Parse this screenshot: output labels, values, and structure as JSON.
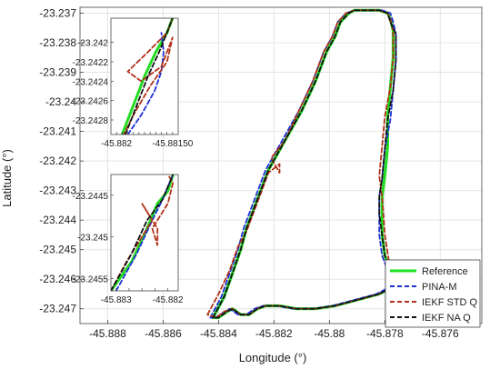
{
  "chart_data": {
    "type": "line",
    "title": "",
    "xlabel": "Longitude (°)",
    "ylabel": "Latitude (°)",
    "xlim": [
      -45.889,
      -45.8745
    ],
    "ylim": [
      -23.2475,
      -23.2368
    ],
    "grid": true,
    "xticks": [
      -45.888,
      -45.886,
      -45.884,
      -45.882,
      -45.88,
      -45.878,
      -45.876
    ],
    "yticks": [
      -23.237,
      -23.238,
      -23.239,
      -23.24,
      -23.241,
      -23.242,
      -23.243,
      -23.244,
      -23.245,
      -23.246,
      -23.247
    ],
    "legend_position": "bottom-right",
    "series": [
      {
        "name": "Reference",
        "color": "#22dd22",
        "style": "solid",
        "x": [
          -45.8842,
          -45.8838,
          -45.8835,
          -45.8832,
          -45.883,
          -45.8826,
          -45.8822,
          -45.8816,
          -45.881,
          -45.8805,
          -45.8801,
          -45.8798,
          -45.8796,
          -45.8793,
          -45.8791,
          -45.8788,
          -45.8786,
          -45.8782,
          -45.8779,
          -45.8778,
          -45.8777,
          -45.8777,
          -45.8778,
          -45.8779,
          -45.8779,
          -45.878,
          -45.8781,
          -45.8781,
          -45.8781,
          -45.878,
          -45.8778,
          -45.8777,
          -45.8778,
          -45.8782,
          -45.879,
          -45.8798,
          -45.8805,
          -45.8812,
          -45.8818,
          -45.8823,
          -45.8826,
          -45.8829,
          -45.8832,
          -45.8835,
          -45.8837,
          -45.884,
          -45.8842
        ],
        "y": [
          -23.2473,
          -23.2466,
          -23.2458,
          -23.245,
          -23.2443,
          -23.2433,
          -23.2423,
          -23.2413,
          -23.2403,
          -23.2393,
          -23.2383,
          -23.2378,
          -23.2373,
          -23.237,
          -23.2369,
          -23.2369,
          -23.2369,
          -23.2369,
          -23.237,
          -23.2372,
          -23.2376,
          -23.2385,
          -23.2395,
          -23.2405,
          -23.2415,
          -23.2425,
          -23.2432,
          -23.2438,
          -23.2445,
          -23.2452,
          -23.2457,
          -23.2461,
          -23.2463,
          -23.2465,
          -23.2467,
          -23.2469,
          -23.247,
          -23.247,
          -23.2469,
          -23.2469,
          -23.247,
          -23.2472,
          -23.2472,
          -23.247,
          -23.2471,
          -23.2473,
          -23.2473
        ]
      },
      {
        "name": "PINA-M",
        "color": "#1f2fd6",
        "style": "dashed",
        "x": [
          -45.8843,
          -45.8839,
          -45.8836,
          -45.8833,
          -45.8831,
          -45.8827,
          -45.8823,
          -45.8817,
          -45.8811,
          -45.8806,
          -45.8802,
          -45.8799,
          -45.8797,
          -45.8794,
          -45.8791,
          -45.8788,
          -45.8785,
          -45.8781,
          -45.8778,
          -45.8777,
          -45.8776,
          -45.8776,
          -45.8777,
          -45.8778,
          -45.878,
          -45.8781,
          -45.8782,
          -45.8782,
          -45.8782,
          -45.8781,
          -45.8779,
          -45.8778,
          -45.8779,
          -45.8783,
          -45.8791,
          -45.8799,
          -45.8806,
          -45.8813,
          -45.8819,
          -45.8824,
          -45.8827,
          -45.883,
          -45.8833,
          -45.8836,
          -45.8838,
          -45.8841,
          -45.8843
        ],
        "y": [
          -23.2473,
          -23.2466,
          -23.2458,
          -23.245,
          -23.2443,
          -23.2433,
          -23.2423,
          -23.2413,
          -23.2403,
          -23.2393,
          -23.2383,
          -23.2378,
          -23.2373,
          -23.237,
          -23.2369,
          -23.2369,
          -23.2369,
          -23.2369,
          -23.237,
          -23.2373,
          -23.2377,
          -23.2386,
          -23.2396,
          -23.2406,
          -23.2416,
          -23.2426,
          -23.2432,
          -23.2438,
          -23.2445,
          -23.2452,
          -23.2457,
          -23.2461,
          -23.2463,
          -23.2465,
          -23.2467,
          -23.2469,
          -23.247,
          -23.247,
          -23.2469,
          -23.2469,
          -23.247,
          -23.2472,
          -23.2472,
          -23.247,
          -23.2471,
          -23.2473,
          -23.2473
        ]
      },
      {
        "name": "IEKF STD Q",
        "color": "#b03218",
        "style": "dashed",
        "x": [
          -45.8844,
          -45.884,
          -45.8836,
          -45.8833,
          -45.883,
          -45.8826,
          -45.8822,
          -45.8818,
          -45.8818,
          -45.8821,
          -45.8816,
          -45.8811,
          -45.8806,
          -45.8802,
          -45.8799,
          -45.8797,
          -45.8794,
          -45.8791,
          -45.8788,
          -45.8786,
          -45.8782,
          -45.8779,
          -45.8778,
          -45.8777,
          -45.8777,
          -45.8778,
          -45.878,
          -45.8781,
          -45.8782,
          -45.8781,
          -45.878,
          -45.8778,
          -45.8777,
          -45.8778,
          -45.8782,
          -45.879,
          -45.8798,
          -45.8805,
          -45.8812,
          -45.8818,
          -45.8823,
          -45.8826,
          -45.8829,
          -45.8832,
          -45.8835,
          -45.8838,
          -45.8841,
          -45.8844
        ],
        "y": [
          -23.2472,
          -23.2465,
          -23.2457,
          -23.2449,
          -23.2444,
          -23.2434,
          -23.2424,
          -23.2421,
          -23.2424,
          -23.2419,
          -23.2413,
          -23.2403,
          -23.2393,
          -23.2383,
          -23.2378,
          -23.2373,
          -23.237,
          -23.2369,
          -23.2369,
          -23.2369,
          -23.2369,
          -23.237,
          -23.2372,
          -23.2376,
          -23.2385,
          -23.2395,
          -23.2405,
          -23.2415,
          -23.2425,
          -23.2432,
          -23.2445,
          -23.2457,
          -23.2461,
          -23.2463,
          -23.2465,
          -23.2467,
          -23.2469,
          -23.247,
          -23.247,
          -23.2469,
          -23.2469,
          -23.247,
          -23.2472,
          -23.2472,
          -23.247,
          -23.2471,
          -23.2473,
          -23.2472
        ]
      },
      {
        "name": "IEKF NA Q",
        "color": "#111111",
        "style": "dashed",
        "x": [
          -45.8842,
          -45.8838,
          -45.8835,
          -45.8832,
          -45.883,
          -45.8826,
          -45.8822,
          -45.8816,
          -45.881,
          -45.8805,
          -45.8801,
          -45.8798,
          -45.8796,
          -45.8793,
          -45.8791,
          -45.8788,
          -45.8786,
          -45.8782,
          -45.8779,
          -45.8778,
          -45.8776,
          -45.8776,
          -45.8777,
          -45.8779,
          -45.878,
          -45.8781,
          -45.8782,
          -45.8782,
          -45.8781,
          -45.878,
          -45.8778,
          -45.8777,
          -45.8778,
          -45.8782,
          -45.879,
          -45.8798,
          -45.8805,
          -45.8812,
          -45.8818,
          -45.8823,
          -45.8826,
          -45.8829,
          -45.8832,
          -45.8835,
          -45.8837,
          -45.884,
          -45.8842
        ],
        "y": [
          -23.2473,
          -23.2466,
          -23.2458,
          -23.245,
          -23.2443,
          -23.2433,
          -23.2423,
          -23.2413,
          -23.2403,
          -23.2393,
          -23.2383,
          -23.2378,
          -23.2373,
          -23.237,
          -23.2369,
          -23.2369,
          -23.2369,
          -23.2369,
          -23.237,
          -23.2373,
          -23.2377,
          -23.2386,
          -23.2396,
          -23.2406,
          -23.2416,
          -23.2426,
          -23.2432,
          -23.2438,
          -23.2445,
          -23.2452,
          -23.2457,
          -23.2461,
          -23.2463,
          -23.2465,
          -23.2467,
          -23.2469,
          -23.247,
          -23.247,
          -23.2469,
          -23.2469,
          -23.247,
          -23.2472,
          -23.2472,
          -23.247,
          -23.2471,
          -23.2473,
          -23.2473
        ]
      }
    ],
    "insets": [
      {
        "xlim": [
          -45.88205,
          -45.88145
        ],
        "ylim": [
          -23.24295,
          -23.24175
        ],
        "xticks": [
          -45.882,
          -45.88195,
          -45.8819,
          -45.88185,
          -45.8818,
          -45.88175,
          -45.8817,
          -45.88165,
          -45.8816,
          -45.88155,
          -45.8815
        ],
        "xticklabels": [
          "-45.882",
          "",
          "",
          "",
          "",
          "",
          "",
          "",
          "",
          "",
          "-45.88150"
        ],
        "yticks": [
          -23.242,
          -23.2422,
          -23.2424,
          -23.2426,
          -23.2428
        ],
        "yticklabels": [
          "-23.242",
          "-23.2422",
          "-23.2424",
          "-23.2426",
          "-23.2428"
        ],
        "series": [
          {
            "name": "Reference",
            "x": [
              -45.88195,
              -45.88185,
              -45.88175,
              -45.88165,
              -45.88155,
              -45.8815
            ],
            "y": [
              -23.24295,
              -23.24265,
              -23.24235,
              -23.2421,
              -23.2419,
              -23.24175
            ]
          },
          {
            "name": "PINA-M",
            "x": [
              -45.8819,
              -45.88178,
              -45.88166,
              -45.8816,
              -45.88158,
              -45.8816
            ],
            "y": [
              -23.24295,
              -23.24275,
              -23.2425,
              -23.2423,
              -23.2421,
              -23.2419
            ]
          },
          {
            "name": "IEKF STD Q",
            "x": [
              -45.882,
              -45.88185,
              -45.8817,
              -45.88155,
              -45.8815,
              -45.8816,
              -45.88178,
              -45.8819,
              -45.88172,
              -45.88155,
              -45.8815
            ],
            "y": [
              -23.2431,
              -23.24275,
              -23.24245,
              -23.2422,
              -23.24195,
              -23.24225,
              -23.2424,
              -23.2423,
              -23.2421,
              -23.2419,
              -23.24175
            ]
          },
          {
            "name": "IEKF NA Q",
            "x": [
              -45.88192,
              -45.88182,
              -45.88172,
              -45.88162,
              -45.88155,
              -45.8815
            ],
            "y": [
              -23.24295,
              -23.24265,
              -23.24235,
              -23.2421,
              -23.2419,
              -23.24175
            ]
          }
        ]
      },
      {
        "xlim": [
          -45.8831,
          -45.8818
        ],
        "ylim": [
          -23.24565,
          -23.24425
        ],
        "xticks": [
          -45.883,
          -45.88275,
          -45.8825,
          -45.88225,
          -45.882
        ],
        "xticklabels": [
          "-45.883",
          "",
          "",
          "",
          "-45.882"
        ],
        "yticks": [
          -23.2445,
          -23.245,
          -23.2455
        ],
        "yticklabels": [
          "-23.2445",
          "-23.245",
          "-23.2455"
        ],
        "series": [
          {
            "name": "Reference",
            "x": [
              -45.8831,
              -45.8827,
              -45.8824,
              -45.8822,
              -45.882,
              -45.8819
            ],
            "y": [
              -23.24565,
              -23.2453,
              -23.2449,
              -23.2446,
              -23.24445,
              -23.24425
            ]
          },
          {
            "name": "PINA-M",
            "x": [
              -45.883,
              -45.8826,
              -45.8823,
              -45.8821,
              -45.8819
            ],
            "y": [
              -23.24565,
              -23.2452,
              -23.2448,
              -23.24455,
              -23.24425
            ]
          },
          {
            "name": "IEKF STD Q",
            "x": [
              -45.8831,
              -45.8828,
              -45.8826,
              -45.8824,
              -45.8823,
              -45.8825,
              -45.8822,
              -45.8822,
              -45.8823,
              -45.882,
              -45.8819,
              -45.882
            ],
            "y": [
              -23.24565,
              -23.2453,
              -23.2451,
              -23.2449,
              -23.2448,
              -23.2446,
              -23.2449,
              -23.2451,
              -23.2449,
              -23.2446,
              -23.24435,
              -23.24425
            ]
          },
          {
            "name": "IEKF NA Q",
            "x": [
              -45.8831,
              -45.8827,
              -45.8824,
              -45.8821,
              -45.8819
            ],
            "y": [
              -23.24565,
              -23.2452,
              -23.2448,
              -23.24455,
              -23.24425
            ]
          }
        ]
      }
    ]
  }
}
